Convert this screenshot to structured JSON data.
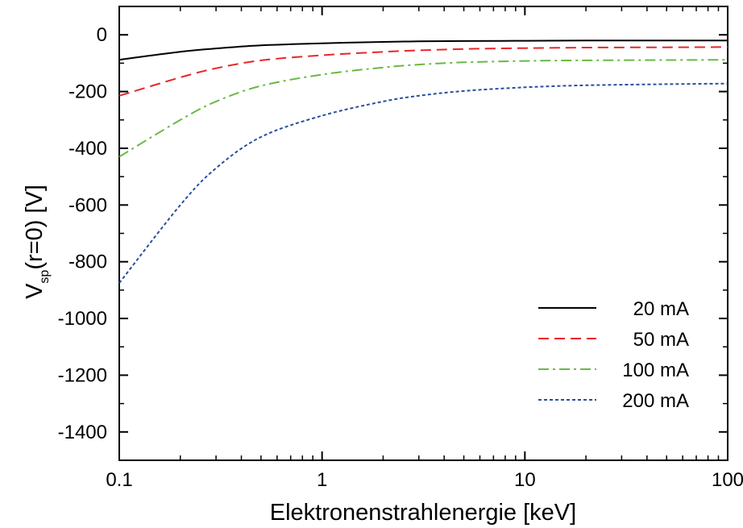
{
  "chart_data": {
    "type": "line",
    "title": "",
    "xlabel": "Elektronenstrahlenergie [keV]",
    "ylabel": {
      "main": "V",
      "subscript": "sp",
      "rest": "(r=0) [V]"
    },
    "x_scale": "log",
    "xlim": [
      0.1,
      100
    ],
    "ylim": [
      -1500,
      100
    ],
    "x_ticks": [
      0.1,
      1,
      10,
      100
    ],
    "x_tick_labels": [
      "0.1",
      "1",
      "10",
      "100"
    ],
    "y_ticks": [
      0,
      -200,
      -400,
      -600,
      -800,
      -1000,
      -1200,
      -1400
    ],
    "y_tick_labels": [
      "0",
      "-200",
      "-400",
      "-600",
      "-800",
      "-1000",
      "-1200",
      "-1400"
    ],
    "grid": false,
    "legend_position": "bottom-right",
    "series": [
      {
        "name": "20 mA",
        "color": "#000000",
        "dash": "solid",
        "x": [
          0.1,
          0.2,
          0.3,
          0.5,
          1,
          2,
          3,
          5,
          10,
          20,
          50,
          100
        ],
        "y": [
          -88,
          -60,
          -48,
          -37,
          -30,
          -25,
          -23,
          -22,
          -21,
          -20,
          -20,
          -20
        ]
      },
      {
        "name": "50 mA",
        "color": "#e8262a",
        "dash": "dashed",
        "x": [
          0.1,
          0.2,
          0.3,
          0.5,
          1,
          2,
          3,
          5,
          10,
          20,
          50,
          100
        ],
        "y": [
          -215,
          -150,
          -118,
          -90,
          -72,
          -60,
          -55,
          -50,
          -47,
          -45,
          -44,
          -43
        ]
      },
      {
        "name": "100 mA",
        "color": "#6ab945",
        "dash": "dash-dot",
        "x": [
          0.1,
          0.2,
          0.3,
          0.5,
          1,
          2,
          3,
          5,
          10,
          20,
          50,
          100
        ],
        "y": [
          -430,
          -300,
          -235,
          -180,
          -140,
          -115,
          -105,
          -97,
          -92,
          -90,
          -89,
          -88
        ]
      },
      {
        "name": "200 mA",
        "color": "#2a4f9c",
        "dash": "dotted",
        "x": [
          0.1,
          0.2,
          0.3,
          0.5,
          1,
          2,
          3,
          5,
          10,
          20,
          50,
          100
        ],
        "y": [
          -875,
          -600,
          -470,
          -360,
          -285,
          -235,
          -215,
          -198,
          -185,
          -178,
          -174,
          -172
        ]
      }
    ]
  }
}
